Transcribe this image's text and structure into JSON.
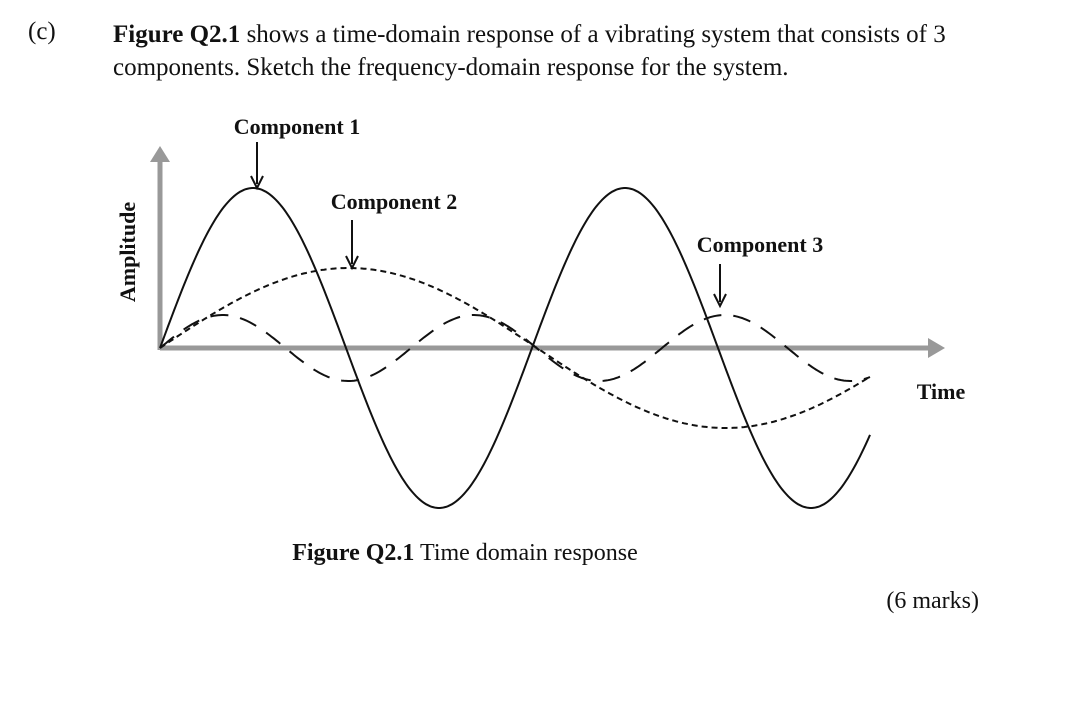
{
  "question": {
    "label": "(c)",
    "ref": "Figure Q2.1",
    "text": "shows a time-domain response of a vibrating system that consists of 3 components. Sketch the frequency-domain response for the system.",
    "marks": "(6 marks)"
  },
  "figure": {
    "components": [
      "Component 1",
      "Component 2",
      "Component 3"
    ],
    "y_label": "Amplitude",
    "x_label": "Time",
    "caption": {
      "ref": "Figure Q2.1",
      "text": "Time domain response"
    }
  }
}
